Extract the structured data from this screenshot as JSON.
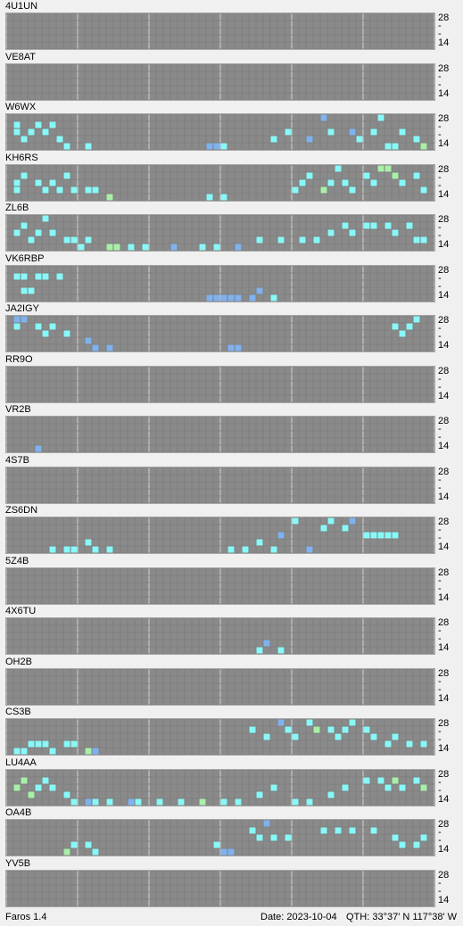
{
  "app": {
    "name": "Faros 1.4"
  },
  "status": {
    "date": "Date: 2023-10-04",
    "qth": "QTH: 33°37' N  117°38' W"
  },
  "axis": {
    "top": "28",
    "bottom": "14",
    "mid": "-"
  },
  "colors": {
    "grid_bg": "#7c7c7c",
    "cell": "#8a8a8a",
    "line": "#a8a8a8",
    "blue": "#7fb2ee",
    "cyan": "#88f8f8",
    "green": "#a8f0a8"
  },
  "stations": [
    {
      "call": "4U1UN",
      "spots": []
    },
    {
      "call": "VE8AT",
      "spots": []
    },
    {
      "call": "W6WX",
      "spots": [
        {
          "x": 0.01,
          "b": 1,
          "c": "cyan"
        },
        {
          "x": 0.02,
          "b": 2,
          "c": "cyan"
        },
        {
          "x": 0.03,
          "b": 3,
          "c": "cyan"
        },
        {
          "x": 0.05,
          "b": 2,
          "c": "cyan"
        },
        {
          "x": 0.07,
          "b": 1,
          "c": "cyan"
        },
        {
          "x": 0.09,
          "b": 2,
          "c": "cyan"
        },
        {
          "x": 0.11,
          "b": 1,
          "c": "cyan"
        },
        {
          "x": 0.12,
          "b": 3,
          "c": "cyan"
        },
        {
          "x": 0.14,
          "b": 4,
          "c": "cyan"
        },
        {
          "x": 0.18,
          "b": 4,
          "c": "cyan"
        },
        {
          "x": 0.47,
          "b": 4,
          "c": "blue"
        },
        {
          "x": 0.49,
          "b": 4,
          "c": "blue"
        },
        {
          "x": 0.51,
          "b": 4,
          "c": "cyan"
        },
        {
          "x": 0.63,
          "b": 3,
          "c": "cyan"
        },
        {
          "x": 0.66,
          "b": 2,
          "c": "cyan"
        },
        {
          "x": 0.71,
          "b": 3,
          "c": "blue"
        },
        {
          "x": 0.75,
          "b": 0,
          "c": "blue"
        },
        {
          "x": 0.77,
          "b": 2,
          "c": "cyan"
        },
        {
          "x": 0.81,
          "b": 2,
          "c": "blue"
        },
        {
          "x": 0.83,
          "b": 3,
          "c": "cyan"
        },
        {
          "x": 0.87,
          "b": 2,
          "c": "cyan"
        },
        {
          "x": 0.88,
          "b": 0,
          "c": "cyan"
        },
        {
          "x": 0.9,
          "b": 4,
          "c": "cyan"
        },
        {
          "x": 0.92,
          "b": 4,
          "c": "cyan"
        },
        {
          "x": 0.94,
          "b": 2,
          "c": "cyan"
        },
        {
          "x": 0.96,
          "b": 3,
          "c": "cyan"
        },
        {
          "x": 0.98,
          "b": 4,
          "c": "green"
        }
      ]
    },
    {
      "call": "KH6RS",
      "spots": [
        {
          "x": 0.01,
          "b": 2,
          "c": "cyan"
        },
        {
          "x": 0.02,
          "b": 3,
          "c": "cyan"
        },
        {
          "x": 0.04,
          "b": 1,
          "c": "cyan"
        },
        {
          "x": 0.06,
          "b": 2,
          "c": "cyan"
        },
        {
          "x": 0.08,
          "b": 3,
          "c": "cyan"
        },
        {
          "x": 0.1,
          "b": 2,
          "c": "cyan"
        },
        {
          "x": 0.12,
          "b": 3,
          "c": "cyan"
        },
        {
          "x": 0.14,
          "b": 1,
          "c": "cyan"
        },
        {
          "x": 0.16,
          "b": 3,
          "c": "cyan"
        },
        {
          "x": 0.18,
          "b": 3,
          "c": "cyan"
        },
        {
          "x": 0.2,
          "b": 3,
          "c": "cyan"
        },
        {
          "x": 0.23,
          "b": 4,
          "c": "green"
        },
        {
          "x": 0.48,
          "b": 4,
          "c": "cyan"
        },
        {
          "x": 0.5,
          "b": 4,
          "c": "cyan"
        },
        {
          "x": 0.67,
          "b": 3,
          "c": "cyan"
        },
        {
          "x": 0.7,
          "b": 2,
          "c": "cyan"
        },
        {
          "x": 0.72,
          "b": 1,
          "c": "cyan"
        },
        {
          "x": 0.74,
          "b": 3,
          "c": "green"
        },
        {
          "x": 0.76,
          "b": 2,
          "c": "cyan"
        },
        {
          "x": 0.78,
          "b": 0,
          "c": "cyan"
        },
        {
          "x": 0.8,
          "b": 2,
          "c": "cyan"
        },
        {
          "x": 0.82,
          "b": 3,
          "c": "cyan"
        },
        {
          "x": 0.84,
          "b": 1,
          "c": "cyan"
        },
        {
          "x": 0.86,
          "b": 2,
          "c": "cyan"
        },
        {
          "x": 0.88,
          "b": 0,
          "c": "green"
        },
        {
          "x": 0.9,
          "b": 0,
          "c": "green"
        },
        {
          "x": 0.92,
          "b": 1,
          "c": "green"
        },
        {
          "x": 0.94,
          "b": 2,
          "c": "cyan"
        },
        {
          "x": 0.96,
          "b": 1,
          "c": "cyan"
        },
        {
          "x": 0.98,
          "b": 3,
          "c": "cyan"
        }
      ]
    },
    {
      "call": "ZL6B",
      "spots": [
        {
          "x": 0.01,
          "b": 2,
          "c": "cyan"
        },
        {
          "x": 0.03,
          "b": 1,
          "c": "cyan"
        },
        {
          "x": 0.05,
          "b": 3,
          "c": "cyan"
        },
        {
          "x": 0.07,
          "b": 2,
          "c": "cyan"
        },
        {
          "x": 0.09,
          "b": 0,
          "c": "cyan"
        },
        {
          "x": 0.11,
          "b": 2,
          "c": "cyan"
        },
        {
          "x": 0.13,
          "b": 3,
          "c": "cyan"
        },
        {
          "x": 0.15,
          "b": 3,
          "c": "cyan"
        },
        {
          "x": 0.17,
          "b": 4,
          "c": "cyan"
        },
        {
          "x": 0.19,
          "b": 3,
          "c": "cyan"
        },
        {
          "x": 0.24,
          "b": 4,
          "c": "green"
        },
        {
          "x": 0.26,
          "b": 4,
          "c": "green"
        },
        {
          "x": 0.29,
          "b": 4,
          "c": "cyan"
        },
        {
          "x": 0.33,
          "b": 4,
          "c": "cyan"
        },
        {
          "x": 0.39,
          "b": 4,
          "c": "blue"
        },
        {
          "x": 0.45,
          "b": 4,
          "c": "cyan"
        },
        {
          "x": 0.49,
          "b": 4,
          "c": "cyan"
        },
        {
          "x": 0.54,
          "b": 4,
          "c": "blue"
        },
        {
          "x": 0.6,
          "b": 3,
          "c": "cyan"
        },
        {
          "x": 0.65,
          "b": 3,
          "c": "cyan"
        },
        {
          "x": 0.7,
          "b": 3,
          "c": "cyan"
        },
        {
          "x": 0.73,
          "b": 3,
          "c": "cyan"
        },
        {
          "x": 0.76,
          "b": 2,
          "c": "cyan"
        },
        {
          "x": 0.8,
          "b": 1,
          "c": "cyan"
        },
        {
          "x": 0.82,
          "b": 2,
          "c": "cyan"
        },
        {
          "x": 0.85,
          "b": 1,
          "c": "cyan"
        },
        {
          "x": 0.87,
          "b": 1,
          "c": "cyan"
        },
        {
          "x": 0.9,
          "b": 1,
          "c": "cyan"
        },
        {
          "x": 0.92,
          "b": 2,
          "c": "cyan"
        },
        {
          "x": 0.95,
          "b": 1,
          "c": "cyan"
        },
        {
          "x": 0.97,
          "b": 3,
          "c": "cyan"
        },
        {
          "x": 0.99,
          "b": 3,
          "c": "cyan"
        }
      ]
    },
    {
      "call": "VK6RBP",
      "spots": [
        {
          "x": 0.02,
          "b": 1,
          "c": "cyan"
        },
        {
          "x": 0.04,
          "b": 1,
          "c": "cyan"
        },
        {
          "x": 0.06,
          "b": 1,
          "c": "cyan"
        },
        {
          "x": 0.08,
          "b": 1,
          "c": "cyan"
        },
        {
          "x": 0.12,
          "b": 1,
          "c": "cyan"
        },
        {
          "x": 0.03,
          "b": 3,
          "c": "cyan"
        },
        {
          "x": 0.05,
          "b": 3,
          "c": "cyan"
        },
        {
          "x": 0.47,
          "b": 4,
          "c": "blue"
        },
        {
          "x": 0.49,
          "b": 4,
          "c": "blue"
        },
        {
          "x": 0.51,
          "b": 4,
          "c": "blue"
        },
        {
          "x": 0.53,
          "b": 4,
          "c": "blue"
        },
        {
          "x": 0.55,
          "b": 4,
          "c": "blue"
        },
        {
          "x": 0.57,
          "b": 4,
          "c": "blue"
        },
        {
          "x": 0.6,
          "b": 3,
          "c": "blue"
        },
        {
          "x": 0.63,
          "b": 4,
          "c": "cyan"
        }
      ]
    },
    {
      "call": "JA2IGY",
      "spots": [
        {
          "x": 0.01,
          "b": 0,
          "c": "blue"
        },
        {
          "x": 0.02,
          "b": 1,
          "c": "cyan"
        },
        {
          "x": 0.04,
          "b": 0,
          "c": "blue"
        },
        {
          "x": 0.07,
          "b": 1,
          "c": "cyan"
        },
        {
          "x": 0.09,
          "b": 2,
          "c": "cyan"
        },
        {
          "x": 0.11,
          "b": 1,
          "c": "cyan"
        },
        {
          "x": 0.13,
          "b": 2,
          "c": "cyan"
        },
        {
          "x": 0.18,
          "b": 3,
          "c": "blue"
        },
        {
          "x": 0.21,
          "b": 4,
          "c": "blue"
        },
        {
          "x": 0.23,
          "b": 4,
          "c": "blue"
        },
        {
          "x": 0.53,
          "b": 4,
          "c": "blue"
        },
        {
          "x": 0.55,
          "b": 4,
          "c": "blue"
        },
        {
          "x": 0.91,
          "b": 1,
          "c": "cyan"
        },
        {
          "x": 0.93,
          "b": 2,
          "c": "cyan"
        },
        {
          "x": 0.95,
          "b": 1,
          "c": "cyan"
        },
        {
          "x": 0.97,
          "b": 0,
          "c": "cyan"
        }
      ]
    },
    {
      "call": "RR9O",
      "spots": []
    },
    {
      "call": "VR2B",
      "spots": [
        {
          "x": 0.06,
          "b": 4,
          "c": "blue"
        }
      ]
    },
    {
      "call": "4S7B",
      "spots": []
    },
    {
      "call": "ZS6DN",
      "spots": [
        {
          "x": 0.11,
          "b": 4,
          "c": "cyan"
        },
        {
          "x": 0.13,
          "b": 4,
          "c": "cyan"
        },
        {
          "x": 0.16,
          "b": 4,
          "c": "cyan"
        },
        {
          "x": 0.18,
          "b": 3,
          "c": "cyan"
        },
        {
          "x": 0.2,
          "b": 4,
          "c": "cyan"
        },
        {
          "x": 0.23,
          "b": 4,
          "c": "cyan"
        },
        {
          "x": 0.53,
          "b": 4,
          "c": "cyan"
        },
        {
          "x": 0.56,
          "b": 4,
          "c": "cyan"
        },
        {
          "x": 0.6,
          "b": 3,
          "c": "cyan"
        },
        {
          "x": 0.62,
          "b": 4,
          "c": "cyan"
        },
        {
          "x": 0.65,
          "b": 2,
          "c": "blue"
        },
        {
          "x": 0.68,
          "b": 0,
          "c": "cyan"
        },
        {
          "x": 0.72,
          "b": 4,
          "c": "blue"
        },
        {
          "x": 0.75,
          "b": 1,
          "c": "cyan"
        },
        {
          "x": 0.77,
          "b": 0,
          "c": "cyan"
        },
        {
          "x": 0.79,
          "b": 1,
          "c": "cyan"
        },
        {
          "x": 0.82,
          "b": 0,
          "c": "blue"
        },
        {
          "x": 0.84,
          "b": 2,
          "c": "cyan"
        },
        {
          "x": 0.86,
          "b": 2,
          "c": "cyan"
        },
        {
          "x": 0.88,
          "b": 2,
          "c": "cyan"
        },
        {
          "x": 0.9,
          "b": 2,
          "c": "cyan"
        },
        {
          "x": 0.92,
          "b": 2,
          "c": "cyan"
        }
      ]
    },
    {
      "call": "5Z4B",
      "spots": []
    },
    {
      "call": "4X6TU",
      "spots": [
        {
          "x": 0.59,
          "b": 4,
          "c": "cyan"
        },
        {
          "x": 0.61,
          "b": 3,
          "c": "blue"
        },
        {
          "x": 0.64,
          "b": 4,
          "c": "cyan"
        }
      ]
    },
    {
      "call": "OH2B",
      "spots": []
    },
    {
      "call": "CS3B",
      "spots": [
        {
          "x": 0.01,
          "b": 4,
          "c": "cyan"
        },
        {
          "x": 0.03,
          "b": 4,
          "c": "cyan"
        },
        {
          "x": 0.05,
          "b": 3,
          "c": "cyan"
        },
        {
          "x": 0.07,
          "b": 3,
          "c": "cyan"
        },
        {
          "x": 0.09,
          "b": 3,
          "c": "cyan"
        },
        {
          "x": 0.11,
          "b": 4,
          "c": "cyan"
        },
        {
          "x": 0.13,
          "b": 3,
          "c": "cyan"
        },
        {
          "x": 0.15,
          "b": 3,
          "c": "cyan"
        },
        {
          "x": 0.18,
          "b": 4,
          "c": "green"
        },
        {
          "x": 0.21,
          "b": 4,
          "c": "blue"
        },
        {
          "x": 0.58,
          "b": 1,
          "c": "cyan"
        },
        {
          "x": 0.61,
          "b": 2,
          "c": "cyan"
        },
        {
          "x": 0.64,
          "b": 0,
          "c": "blue"
        },
        {
          "x": 0.66,
          "b": 1,
          "c": "cyan"
        },
        {
          "x": 0.68,
          "b": 2,
          "c": "cyan"
        },
        {
          "x": 0.71,
          "b": 0,
          "c": "cyan"
        },
        {
          "x": 0.73,
          "b": 1,
          "c": "green"
        },
        {
          "x": 0.76,
          "b": 1,
          "c": "cyan"
        },
        {
          "x": 0.78,
          "b": 2,
          "c": "cyan"
        },
        {
          "x": 0.8,
          "b": 1,
          "c": "cyan"
        },
        {
          "x": 0.82,
          "b": 0,
          "c": "cyan"
        },
        {
          "x": 0.84,
          "b": 1,
          "c": "cyan"
        },
        {
          "x": 0.86,
          "b": 2,
          "c": "cyan"
        },
        {
          "x": 0.89,
          "b": 3,
          "c": "cyan"
        },
        {
          "x": 0.92,
          "b": 2,
          "c": "cyan"
        },
        {
          "x": 0.95,
          "b": 3,
          "c": "cyan"
        },
        {
          "x": 0.98,
          "b": 3,
          "c": "cyan"
        }
      ]
    },
    {
      "call": "LU4AA",
      "spots": [
        {
          "x": 0.01,
          "b": 2,
          "c": "green"
        },
        {
          "x": 0.03,
          "b": 1,
          "c": "green"
        },
        {
          "x": 0.05,
          "b": 3,
          "c": "green"
        },
        {
          "x": 0.07,
          "b": 2,
          "c": "cyan"
        },
        {
          "x": 0.09,
          "b": 1,
          "c": "cyan"
        },
        {
          "x": 0.11,
          "b": 2,
          "c": "cyan"
        },
        {
          "x": 0.13,
          "b": 3,
          "c": "cyan"
        },
        {
          "x": 0.15,
          "b": 4,
          "c": "cyan"
        },
        {
          "x": 0.18,
          "b": 4,
          "c": "blue"
        },
        {
          "x": 0.21,
          "b": 4,
          "c": "cyan"
        },
        {
          "x": 0.24,
          "b": 4,
          "c": "cyan"
        },
        {
          "x": 0.28,
          "b": 4,
          "c": "blue"
        },
        {
          "x": 0.31,
          "b": 4,
          "c": "cyan"
        },
        {
          "x": 0.35,
          "b": 4,
          "c": "cyan"
        },
        {
          "x": 0.4,
          "b": 4,
          "c": "cyan"
        },
        {
          "x": 0.45,
          "b": 4,
          "c": "green"
        },
        {
          "x": 0.5,
          "b": 4,
          "c": "cyan"
        },
        {
          "x": 0.55,
          "b": 4,
          "c": "cyan"
        },
        {
          "x": 0.6,
          "b": 3,
          "c": "cyan"
        },
        {
          "x": 0.63,
          "b": 2,
          "c": "cyan"
        },
        {
          "x": 0.67,
          "b": 4,
          "c": "cyan"
        },
        {
          "x": 0.72,
          "b": 4,
          "c": "cyan"
        },
        {
          "x": 0.76,
          "b": 3,
          "c": "cyan"
        },
        {
          "x": 0.8,
          "b": 2,
          "c": "cyan"
        },
        {
          "x": 0.84,
          "b": 1,
          "c": "cyan"
        },
        {
          "x": 0.88,
          "b": 1,
          "c": "cyan"
        },
        {
          "x": 0.9,
          "b": 2,
          "c": "cyan"
        },
        {
          "x": 0.92,
          "b": 1,
          "c": "green"
        },
        {
          "x": 0.94,
          "b": 2,
          "c": "cyan"
        },
        {
          "x": 0.96,
          "b": 1,
          "c": "cyan"
        },
        {
          "x": 0.98,
          "b": 2,
          "c": "green"
        }
      ]
    },
    {
      "call": "OA4B",
      "spots": [
        {
          "x": 0.14,
          "b": 4,
          "c": "green"
        },
        {
          "x": 0.16,
          "b": 3,
          "c": "cyan"
        },
        {
          "x": 0.19,
          "b": 3,
          "c": "cyan"
        },
        {
          "x": 0.21,
          "b": 4,
          "c": "cyan"
        },
        {
          "x": 0.49,
          "b": 3,
          "c": "cyan"
        },
        {
          "x": 0.51,
          "b": 4,
          "c": "blue"
        },
        {
          "x": 0.53,
          "b": 4,
          "c": "blue"
        },
        {
          "x": 0.57,
          "b": 1,
          "c": "cyan"
        },
        {
          "x": 0.59,
          "b": 2,
          "c": "cyan"
        },
        {
          "x": 0.61,
          "b": 0,
          "c": "blue"
        },
        {
          "x": 0.63,
          "b": 2,
          "c": "cyan"
        },
        {
          "x": 0.66,
          "b": 2,
          "c": "cyan"
        },
        {
          "x": 0.75,
          "b": 1,
          "c": "cyan"
        },
        {
          "x": 0.78,
          "b": 1,
          "c": "cyan"
        },
        {
          "x": 0.82,
          "b": 1,
          "c": "cyan"
        },
        {
          "x": 0.86,
          "b": 1,
          "c": "cyan"
        },
        {
          "x": 0.91,
          "b": 2,
          "c": "cyan"
        },
        {
          "x": 0.93,
          "b": 3,
          "c": "cyan"
        },
        {
          "x": 0.96,
          "b": 3,
          "c": "cyan"
        },
        {
          "x": 0.98,
          "b": 2,
          "c": "cyan"
        }
      ]
    },
    {
      "call": "YV5B",
      "spots": []
    }
  ]
}
